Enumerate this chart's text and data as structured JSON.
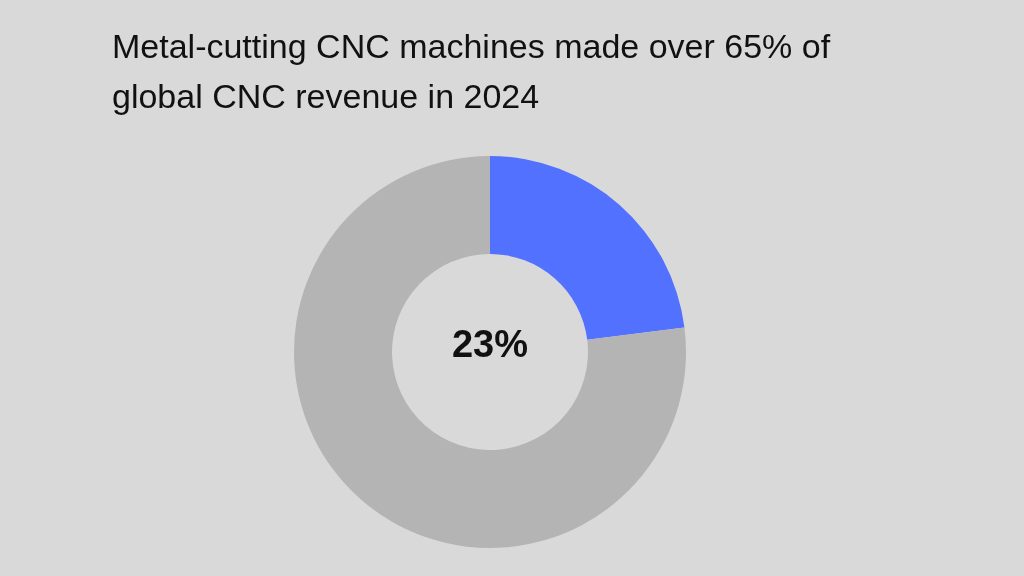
{
  "chart_data": {
    "type": "donut",
    "title": "Metal-cutting CNC machines made over 65% of global CNC revenue in 2024",
    "categories": [
      null,
      null
    ],
    "values": [
      23,
      77
    ],
    "colors": [
      "#5271ff",
      "#b4b4b4"
    ],
    "annotations": [
      "23%"
    ]
  }
}
